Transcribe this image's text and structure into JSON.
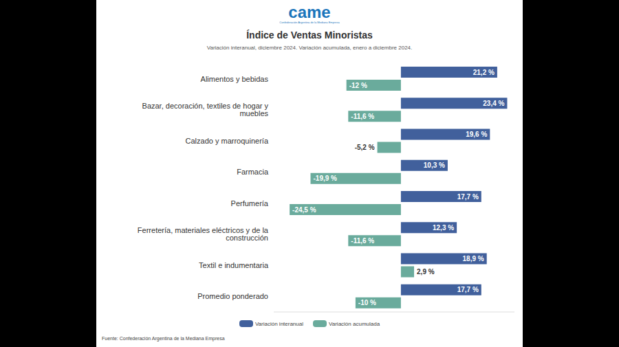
{
  "logo": "came",
  "logo_subtitle": "Confederación Argentina de la Mediana Empresa",
  "source": "Fuente: Confederación Argentina de la Mediana Empresa",
  "chart_data": {
    "type": "bar",
    "orientation": "horizontal",
    "title": "Índice de Ventas Minoristas",
    "subtitle": "Variación interanual, diciembre 2024. Variación acumulada, enero a diciembre 2024.",
    "categories": [
      "Alimentos y bebidas",
      "Bazar, decoración, textiles de hogar y muebles",
      "Calzado y marroquinería",
      "Farmacia",
      "Perfumería",
      "Ferretería, materiales eléctricos y de la construcción",
      "Textil e indumentaria",
      "Promedio ponderado"
    ],
    "series": [
      {
        "name": "Variación interanual",
        "color": "#41609c",
        "values": [
          21.2,
          23.4,
          19.6,
          10.3,
          17.7,
          12.3,
          18.9,
          17.7
        ],
        "value_labels": [
          "21,2 %",
          "23,4 %",
          "19,6 %",
          "10,3 %",
          "17,7 %",
          "12,3 %",
          "18,9 %",
          "17,7 %"
        ]
      },
      {
        "name": "Variación acumulada",
        "color": "#6aab9c",
        "values": [
          -12,
          -11.6,
          -5.2,
          -19.9,
          -24.5,
          -11.6,
          2.9,
          -10
        ],
        "value_labels": [
          "-12 %",
          "-11,6 %",
          "-5,2 %",
          "-19,9 %",
          "-24,5 %",
          "-11,6 %",
          "2,9 %",
          "-10 %"
        ]
      }
    ],
    "xlim": [
      -28,
      25
    ],
    "data_labels": true,
    "tick_labels": "y",
    "grid": false,
    "legend": "bottom"
  }
}
